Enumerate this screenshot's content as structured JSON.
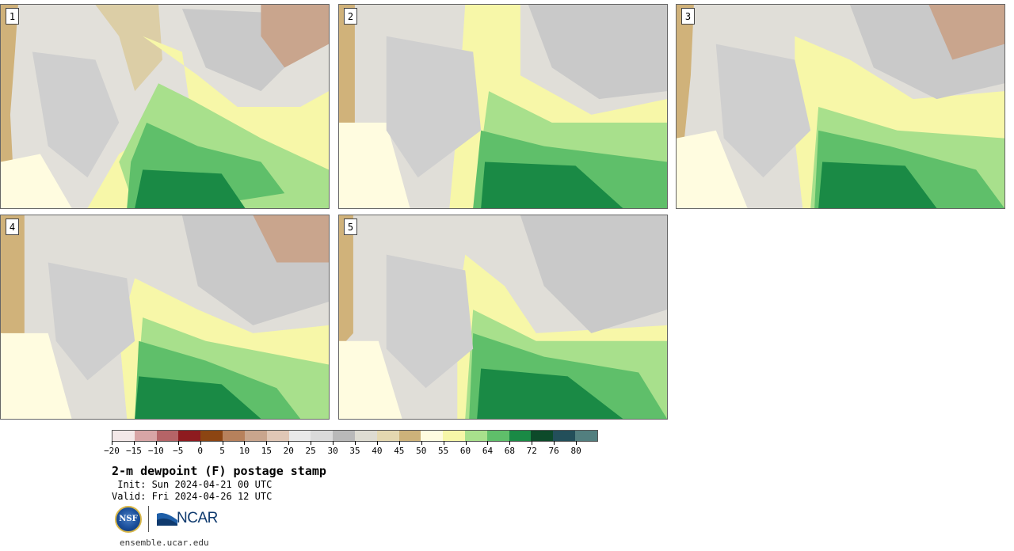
{
  "stamps": [
    {
      "num": "1"
    },
    {
      "num": "2"
    },
    {
      "num": "3"
    },
    {
      "num": "4"
    },
    {
      "num": "5"
    }
  ],
  "colorbar": {
    "colors": [
      "#f3e8e8",
      "#d8a5a6",
      "#b56467",
      "#8e1b1f",
      "#8c4512",
      "#b7815c",
      "#c9a58d",
      "#e0c7b6",
      "#e9e9e9",
      "#dadada",
      "#b9b9b9",
      "#dedcd2",
      "#e4d8b0",
      "#cdb27a",
      "#fffce0",
      "#f7f7a8",
      "#a8e08c",
      "#5fbf6a",
      "#1a8a45",
      "#0d4a2a",
      "#234f5a",
      "#527f7f"
    ],
    "tick_labels": [
      "−20",
      "−15",
      "−10",
      "−5",
      "0",
      "5",
      "10",
      "15",
      "20",
      "25",
      "30",
      "35",
      "40",
      "45",
      "50",
      "55",
      "60",
      "64",
      "68",
      "72",
      "76",
      "80"
    ]
  },
  "title": "2-m dewpoint (F) postage stamp",
  "init_line": " Init: Sun 2024-04-21 00 UTC",
  "valid_line": "Valid: Fri 2024-04-26 12 UTC",
  "logos": {
    "nsf": "NSF",
    "ncar": "NCAR"
  },
  "website": "ensemble.ucar.edu"
}
